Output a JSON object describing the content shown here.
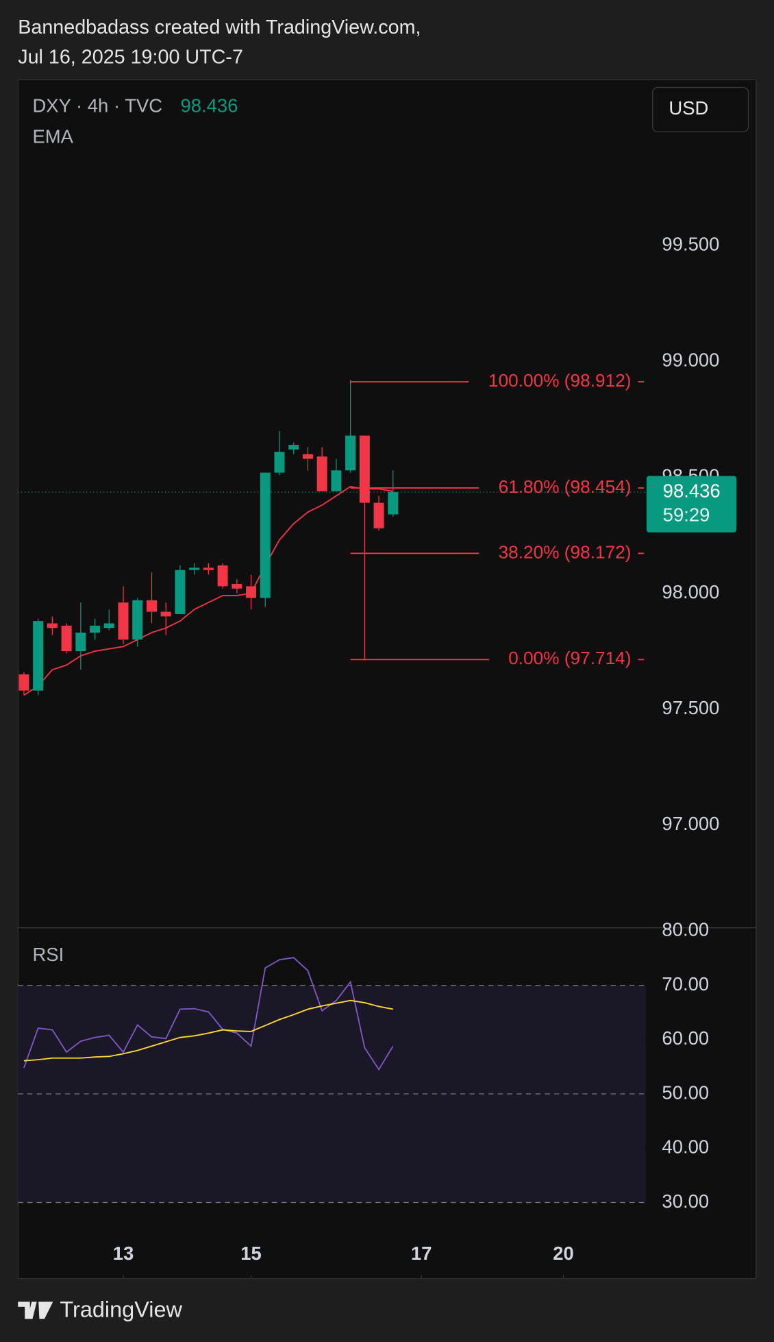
{
  "header": {
    "author_line": "Bannedbadass created with TradingView.com,",
    "date_line": "Jul 16, 2025 19:00 UTC-7"
  },
  "footer": {
    "brand": "TradingView"
  },
  "chart_data": [
    {
      "type": "candlestick",
      "title": "DXY · 4h · TVC",
      "last_price": 98.436,
      "countdown": "59:29",
      "currency": "USD",
      "up_color": "#089981",
      "down_color": "#f23645",
      "x": [
        0,
        1,
        2,
        3,
        4,
        5,
        6,
        7,
        8,
        9,
        10,
        11,
        12,
        13,
        14,
        15,
        16,
        17,
        18,
        19,
        20,
        21,
        22,
        23,
        24,
        25,
        26
      ],
      "open": [
        97.65,
        97.58,
        97.87,
        97.86,
        97.75,
        97.83,
        97.85,
        97.96,
        97.8,
        97.97,
        97.92,
        97.91,
        98.1,
        98.11,
        98.12,
        98.04,
        98.03,
        97.98,
        98.52,
        98.62,
        98.6,
        98.59,
        98.44,
        98.53,
        98.68,
        98.39,
        98.34
      ],
      "high": [
        97.66,
        97.89,
        97.9,
        97.87,
        97.96,
        97.89,
        97.93,
        98.03,
        97.98,
        98.09,
        97.96,
        98.12,
        98.13,
        98.13,
        98.13,
        98.06,
        98.08,
        98.52,
        98.7,
        98.65,
        98.63,
        98.63,
        98.58,
        98.92,
        98.68,
        98.42,
        98.53
      ],
      "low": [
        97.56,
        97.56,
        97.82,
        97.74,
        97.67,
        97.8,
        97.84,
        97.78,
        97.77,
        97.87,
        97.82,
        97.91,
        98.08,
        98.08,
        98.02,
        98.0,
        97.93,
        97.94,
        98.51,
        98.6,
        98.53,
        98.44,
        98.44,
        98.52,
        97.71,
        98.27,
        98.33
      ],
      "close": [
        97.58,
        97.88,
        97.85,
        97.75,
        97.83,
        97.86,
        97.87,
        97.8,
        97.97,
        97.92,
        97.9,
        98.1,
        98.11,
        98.1,
        98.03,
        98.02,
        97.98,
        98.52,
        98.61,
        98.64,
        98.58,
        98.44,
        98.53,
        98.68,
        98.39,
        98.28,
        98.436
      ],
      "ema": {
        "name": "EMA",
        "color": "#f23645",
        "values": [
          97.56,
          97.6,
          97.67,
          97.69,
          97.73,
          97.75,
          97.76,
          97.77,
          97.8,
          97.83,
          97.85,
          97.88,
          97.93,
          97.96,
          97.99,
          97.99,
          98.0,
          98.12,
          98.23,
          98.3,
          98.35,
          98.38,
          98.42,
          98.46,
          98.45,
          98.45,
          98.44
        ]
      },
      "fib_color": "#f23645",
      "fib_levels": [
        {
          "label": "100.00% (98.912)",
          "value": 98.912
        },
        {
          "label": "61.80% (98.454)",
          "value": 98.454
        },
        {
          "label": "38.20% (98.172)",
          "value": 98.172
        },
        {
          "label": "0.00% (97.714)",
          "value": 97.714
        }
      ],
      "xlim": [
        -0.42,
        43.8
      ],
      "xticks": [
        {
          "value": 7,
          "label": "13"
        },
        {
          "value": 16,
          "label": "15"
        },
        {
          "value": 28,
          "label": "17"
        },
        {
          "value": 38,
          "label": "20"
        }
      ],
      "ylim": [
        96.557,
        100.208
      ],
      "yticks": [
        {
          "value": 97,
          "label": "97.000"
        },
        {
          "value": 97.5,
          "label": "97.500"
        },
        {
          "value": 98,
          "label": "98.000"
        },
        {
          "value": 98.5,
          "label": "98.500"
        },
        {
          "value": 99,
          "label": "99.000"
        },
        {
          "value": 99.5,
          "label": "99.500"
        }
      ]
    },
    {
      "type": "line",
      "title": "RSI",
      "x": [
        0,
        1,
        2,
        3,
        4,
        5,
        6,
        7,
        8,
        9,
        10,
        11,
        12,
        13,
        14,
        15,
        16,
        17,
        18,
        19,
        20,
        21,
        22,
        23,
        24,
        25,
        26
      ],
      "series": [
        {
          "color": "#7e57c2",
          "values": [
            54.8,
            62.1,
            61.8,
            57.7,
            59.7,
            60.4,
            60.8,
            57.7,
            62.7,
            60.5,
            60.2,
            65.6,
            65.7,
            65.1,
            61.9,
            61.2,
            58.8,
            73.2,
            74.7,
            75.1,
            72.7,
            65.3,
            67.2,
            70.6,
            58.5,
            54.5,
            58.8
          ]
        },
        {
          "color": "#fdd835",
          "values": [
            56.1,
            56.3,
            56.6,
            56.6,
            56.6,
            56.8,
            56.9,
            57.4,
            58.0,
            58.8,
            59.6,
            60.4,
            60.7,
            61.2,
            61.8,
            61.6,
            61.5,
            62.6,
            63.7,
            64.6,
            65.6,
            66.2,
            66.7,
            67.2,
            66.8,
            66.1,
            65.6
          ]
        }
      ],
      "band": [
        30,
        70
      ],
      "dashed_levels": [
        30,
        50,
        70
      ],
      "ylim": [
        24.5,
        80.6
      ],
      "yticks": [
        {
          "value": 30,
          "label": "30.00"
        },
        {
          "value": 40,
          "label": "40.00"
        },
        {
          "value": 50,
          "label": "50.00"
        },
        {
          "value": 60,
          "label": "60.00"
        },
        {
          "value": 70,
          "label": "70.00"
        },
        {
          "value": 80,
          "label": "80.00"
        }
      ]
    }
  ]
}
